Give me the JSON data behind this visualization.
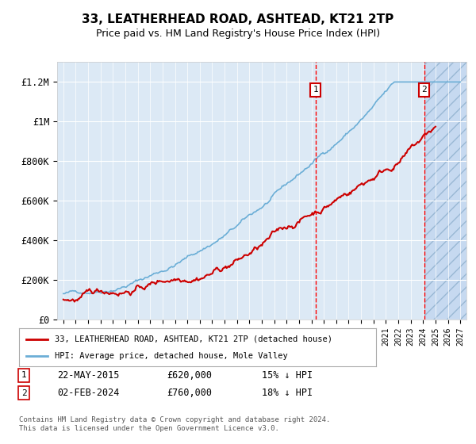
{
  "title": "33, LEATHERHEAD ROAD, ASHTEAD, KT21 2TP",
  "subtitle": "Price paid vs. HM Land Registry's House Price Index (HPI)",
  "ylim": [
    0,
    1300000
  ],
  "yticks": [
    0,
    200000,
    400000,
    600000,
    800000,
    1000000,
    1200000
  ],
  "ytick_labels": [
    "£0",
    "£200K",
    "£400K",
    "£600K",
    "£800K",
    "£1M",
    "£1.2M"
  ],
  "hpi_color": "#6baed6",
  "price_color": "#cc0000",
  "transaction1": {
    "date": "22-MAY-2015",
    "price": 620000,
    "label": "1",
    "pct": "15% ↓ HPI"
  },
  "transaction2": {
    "date": "02-FEB-2024",
    "price": 760000,
    "label": "2",
    "pct": "18% ↓ HPI"
  },
  "legend_line1": "33, LEATHERHEAD ROAD, ASHTEAD, KT21 2TP (detached house)",
  "legend_line2": "HPI: Average price, detached house, Mole Valley",
  "footer": "Contains HM Land Registry data © Crown copyright and database right 2024.\nThis data is licensed under the Open Government Licence v3.0.",
  "hatch_color": "#c6d9f0",
  "hatch_pattern": "//",
  "background_plot": "#dce9f5",
  "background_hatch": "#c6d9f0"
}
